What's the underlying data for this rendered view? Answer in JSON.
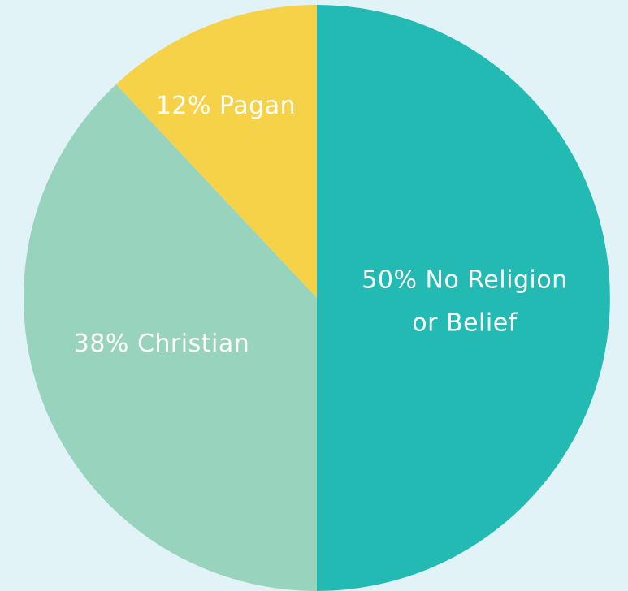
{
  "chart_data": {
    "type": "pie",
    "slices": [
      {
        "label": "50% No Religion or Belief",
        "label_lines": [
          "50% No Religion",
          "or Belief"
        ],
        "value": 50,
        "color": "#22bab3"
      },
      {
        "label": "38% Christian",
        "label_lines": [
          "38% Christian"
        ],
        "value": 38,
        "color": "#98d3bd"
      },
      {
        "label": "12% Pagan",
        "label_lines": [
          "12% Pagan"
        ],
        "value": 12,
        "color": "#f5d248"
      }
    ]
  }
}
